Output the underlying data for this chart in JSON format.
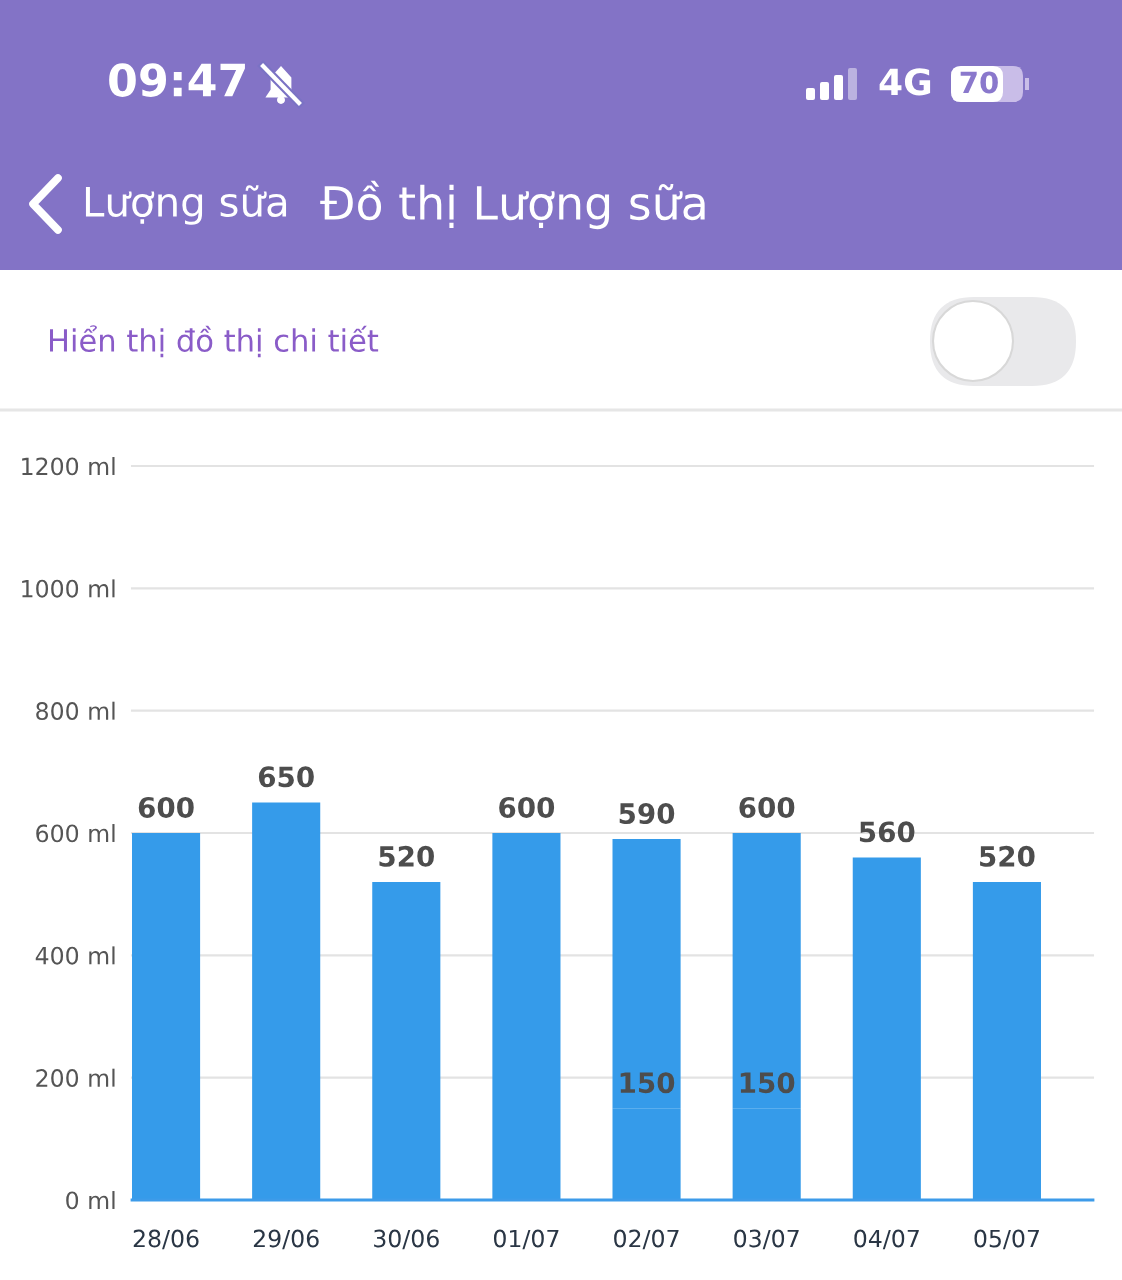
{
  "chart_data": {
    "type": "bar",
    "title": "Đồ thị Lượng sữa",
    "annotations": [
      "09:47",
      "4G",
      "70",
      "Lượng sữa",
      "Hiển thị đồ thị chi tiết"
    ],
    "categories": [
      "28/06",
      "29/06",
      "30/06",
      "01/07",
      "02/07",
      "03/07",
      "04/07",
      "05/07"
    ],
    "stacked": true,
    "series": [
      {
        "color": "#359bea",
        "values": [
          null,
          null,
          null,
          null,
          150,
          150,
          null,
          null
        ],
        "value_labels": [
          null,
          null,
          null,
          null,
          "150",
          "150",
          null,
          null
        ]
      },
      {
        "color": "#359bea",
        "values": [
          600,
          650,
          520,
          600,
          440,
          450,
          560,
          520
        ]
      }
    ],
    "totals": [
      "600",
      "650",
      "520",
      "600",
      "590",
      "600",
      "560",
      "520"
    ],
    "ylim": [
      0,
      1200
    ],
    "yticks": [
      {
        "value": 0,
        "label": "0 ml"
      },
      {
        "value": 200,
        "label": "200 ml"
      },
      {
        "value": 400,
        "label": "400 ml"
      },
      {
        "value": 600,
        "label": "600 ml"
      },
      {
        "value": 800,
        "label": "800 ml"
      },
      {
        "value": 1000,
        "label": "1000 ml"
      },
      {
        "value": 1200,
        "label": "1200 ml"
      }
    ],
    "grid": "y"
  }
}
